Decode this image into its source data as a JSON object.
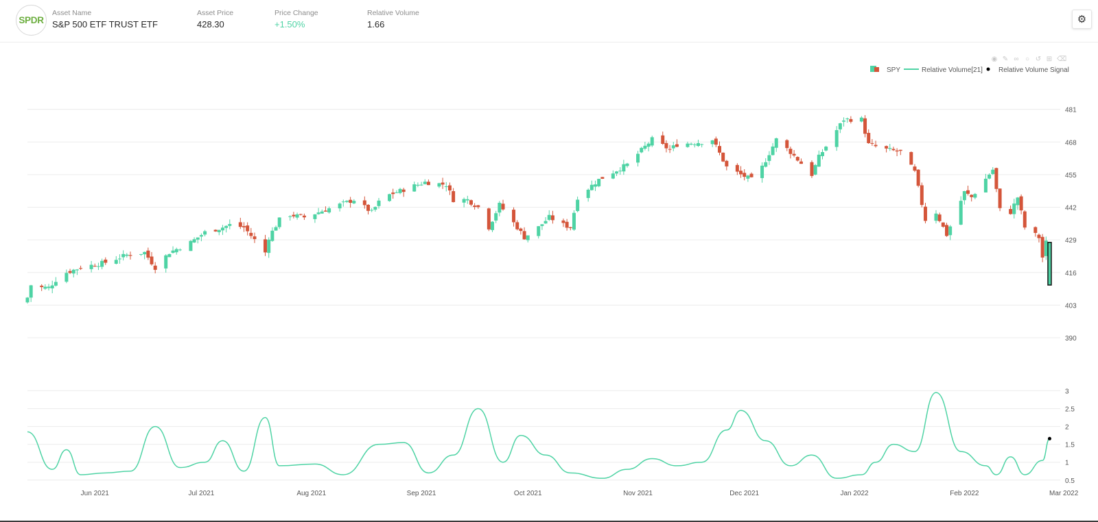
{
  "header": {
    "logo_text": "SPDR",
    "asset_name_label": "Asset Name",
    "asset_name": "S&P 500 ETF TRUST ETF",
    "price_label": "Asset Price",
    "price": "428.30",
    "change_label": "Price Change",
    "change": "+1.50%",
    "volume_label": "Relative Volume",
    "volume": "1.66",
    "settings_icon": "gear-icon"
  },
  "modebar_icons": [
    "camera-icon",
    "pencil-icon",
    "lasso-icon",
    "zoom-icon",
    "reset-icon",
    "plus-icon",
    "eraser-icon"
  ],
  "colors": {
    "up": "#4ed3a4",
    "down": "#d4553a",
    "signal": "#000000",
    "grid": "#ececec"
  },
  "chart_data": {
    "type": "candlestick",
    "legend": [
      "SPY",
      "Relative Volume[21]",
      "Relative Volume Signal"
    ],
    "legend_position": "top-right",
    "x_range": [
      "2021-05-13",
      "2022-02-28"
    ],
    "xticks": [
      "Jun 2021",
      "Jul 2021",
      "Aug 2021",
      "Sep 2021",
      "Oct 2021",
      "Nov 2021",
      "Dec 2021",
      "Jan 2022",
      "Feb 2022",
      "Mar 2022"
    ],
    "price_ticks": [
      390,
      403,
      416,
      429,
      442,
      455,
      468,
      481
    ],
    "price_range": [
      387,
      485
    ],
    "volume_ticks": [
      0.5,
      1,
      1.5,
      2,
      2.5,
      3
    ],
    "volume_range": [
      0.4,
      3.2
    ],
    "grid": true,
    "close_series": [
      [
        "2021-05-13",
        406
      ],
      [
        "2021-05-14",
        411
      ],
      [
        "2021-05-17",
        410
      ],
      [
        "2021-05-19",
        410
      ],
      [
        "2021-05-21",
        413
      ],
      [
        "2021-05-24",
        416
      ],
      [
        "2021-05-28",
        418
      ],
      [
        "2021-06-04",
        420
      ],
      [
        "2021-06-10",
        423
      ],
      [
        "2021-06-15",
        424
      ],
      [
        "2021-06-18",
        418
      ],
      [
        "2021-06-22",
        424
      ],
      [
        "2021-06-28",
        428
      ],
      [
        "2021-07-02",
        432
      ],
      [
        "2021-07-07",
        434
      ],
      [
        "2021-07-09",
        435
      ],
      [
        "2021-07-13",
        434
      ],
      [
        "2021-07-19",
        424
      ],
      [
        "2021-07-20",
        430
      ],
      [
        "2021-07-23",
        437
      ],
      [
        "2021-07-26",
        439
      ],
      [
        "2021-07-30",
        438
      ],
      [
        "2021-08-05",
        441
      ],
      [
        "2021-08-13",
        445
      ],
      [
        "2021-08-18",
        440
      ],
      [
        "2021-08-20",
        444
      ],
      [
        "2021-08-23",
        447
      ],
      [
        "2021-08-31",
        451
      ],
      [
        "2021-09-02",
        452
      ],
      [
        "2021-09-08",
        451
      ],
      [
        "2021-09-10",
        445
      ],
      [
        "2021-09-14",
        445
      ],
      [
        "2021-09-17",
        442
      ],
      [
        "2021-09-20",
        434
      ],
      [
        "2021-09-23",
        443
      ],
      [
        "2021-09-28",
        434
      ],
      [
        "2021-09-30",
        430
      ],
      [
        "2021-10-04",
        434
      ],
      [
        "2021-10-07",
        438
      ],
      [
        "2021-10-11",
        435
      ],
      [
        "2021-10-13",
        434
      ],
      [
        "2021-10-15",
        446
      ],
      [
        "2021-10-21",
        453
      ],
      [
        "2021-10-25",
        456
      ],
      [
        "2021-10-29",
        459
      ],
      [
        "2021-11-05",
        469
      ],
      [
        "2021-11-10",
        465
      ],
      [
        "2021-11-12",
        467
      ],
      [
        "2021-11-19",
        468
      ],
      [
        "2021-11-22",
        469
      ],
      [
        "2021-11-26",
        458
      ],
      [
        "2021-11-30",
        455
      ],
      [
        "2021-12-03",
        453
      ],
      [
        "2021-12-06",
        458
      ],
      [
        "2021-12-10",
        469
      ],
      [
        "2021-12-14",
        464
      ],
      [
        "2021-12-20",
        455
      ],
      [
        "2021-12-22",
        462
      ],
      [
        "2021-12-29",
        477
      ],
      [
        "2022-01-03",
        477
      ],
      [
        "2022-01-05",
        467
      ],
      [
        "2022-01-10",
        465
      ],
      [
        "2022-01-14",
        464
      ],
      [
        "2022-01-18",
        456
      ],
      [
        "2022-01-21",
        437
      ],
      [
        "2022-01-24",
        440
      ],
      [
        "2022-01-27",
        431
      ],
      [
        "2022-02-01",
        448
      ],
      [
        "2022-02-03",
        446
      ],
      [
        "2022-02-09",
        457
      ],
      [
        "2022-02-11",
        441
      ],
      [
        "2022-02-14",
        440
      ],
      [
        "2022-02-16",
        446
      ],
      [
        "2022-02-18",
        434
      ],
      [
        "2022-02-22",
        430
      ],
      [
        "2022-02-23",
        422
      ],
      [
        "2022-02-24",
        428
      ]
    ],
    "signal_candle": {
      "date": "2022-02-25",
      "open": 411,
      "close": 428
    },
    "relative_volume": [
      [
        "2021-05-13",
        1.85
      ],
      [
        "2021-05-20",
        0.8
      ],
      [
        "2021-05-24",
        1.35
      ],
      [
        "2021-05-28",
        0.65
      ],
      [
        "2021-06-04",
        0.7
      ],
      [
        "2021-06-11",
        0.75
      ],
      [
        "2021-06-18",
        2.0
      ],
      [
        "2021-06-25",
        0.85
      ],
      [
        "2021-07-02",
        1.0
      ],
      [
        "2021-07-07",
        1.6
      ],
      [
        "2021-07-13",
        0.75
      ],
      [
        "2021-07-19",
        2.25
      ],
      [
        "2021-07-23",
        0.9
      ],
      [
        "2021-08-02",
        0.95
      ],
      [
        "2021-08-10",
        0.65
      ],
      [
        "2021-08-20",
        1.5
      ],
      [
        "2021-08-27",
        1.55
      ],
      [
        "2021-09-03",
        0.7
      ],
      [
        "2021-09-10",
        1.2
      ],
      [
        "2021-09-17",
        2.5
      ],
      [
        "2021-09-24",
        1.0
      ],
      [
        "2021-09-29",
        1.75
      ],
      [
        "2021-10-06",
        1.2
      ],
      [
        "2021-10-13",
        0.7
      ],
      [
        "2021-10-22",
        0.55
      ],
      [
        "2021-10-29",
        0.8
      ],
      [
        "2021-11-05",
        1.1
      ],
      [
        "2021-11-12",
        0.9
      ],
      [
        "2021-11-19",
        1.0
      ],
      [
        "2021-11-26",
        1.9
      ],
      [
        "2021-11-30",
        2.45
      ],
      [
        "2021-12-07",
        1.6
      ],
      [
        "2021-12-14",
        0.9
      ],
      [
        "2021-12-20",
        1.2
      ],
      [
        "2021-12-27",
        0.55
      ],
      [
        "2022-01-03",
        0.65
      ],
      [
        "2022-01-07",
        1.0
      ],
      [
        "2022-01-12",
        1.5
      ],
      [
        "2022-01-18",
        1.3
      ],
      [
        "2022-01-24",
        2.95
      ],
      [
        "2022-01-31",
        1.3
      ],
      [
        "2022-02-07",
        0.9
      ],
      [
        "2022-02-10",
        0.65
      ],
      [
        "2022-02-14",
        1.15
      ],
      [
        "2022-02-18",
        0.65
      ],
      [
        "2022-02-23",
        1.05
      ],
      [
        "2022-02-25",
        1.66
      ]
    ]
  }
}
